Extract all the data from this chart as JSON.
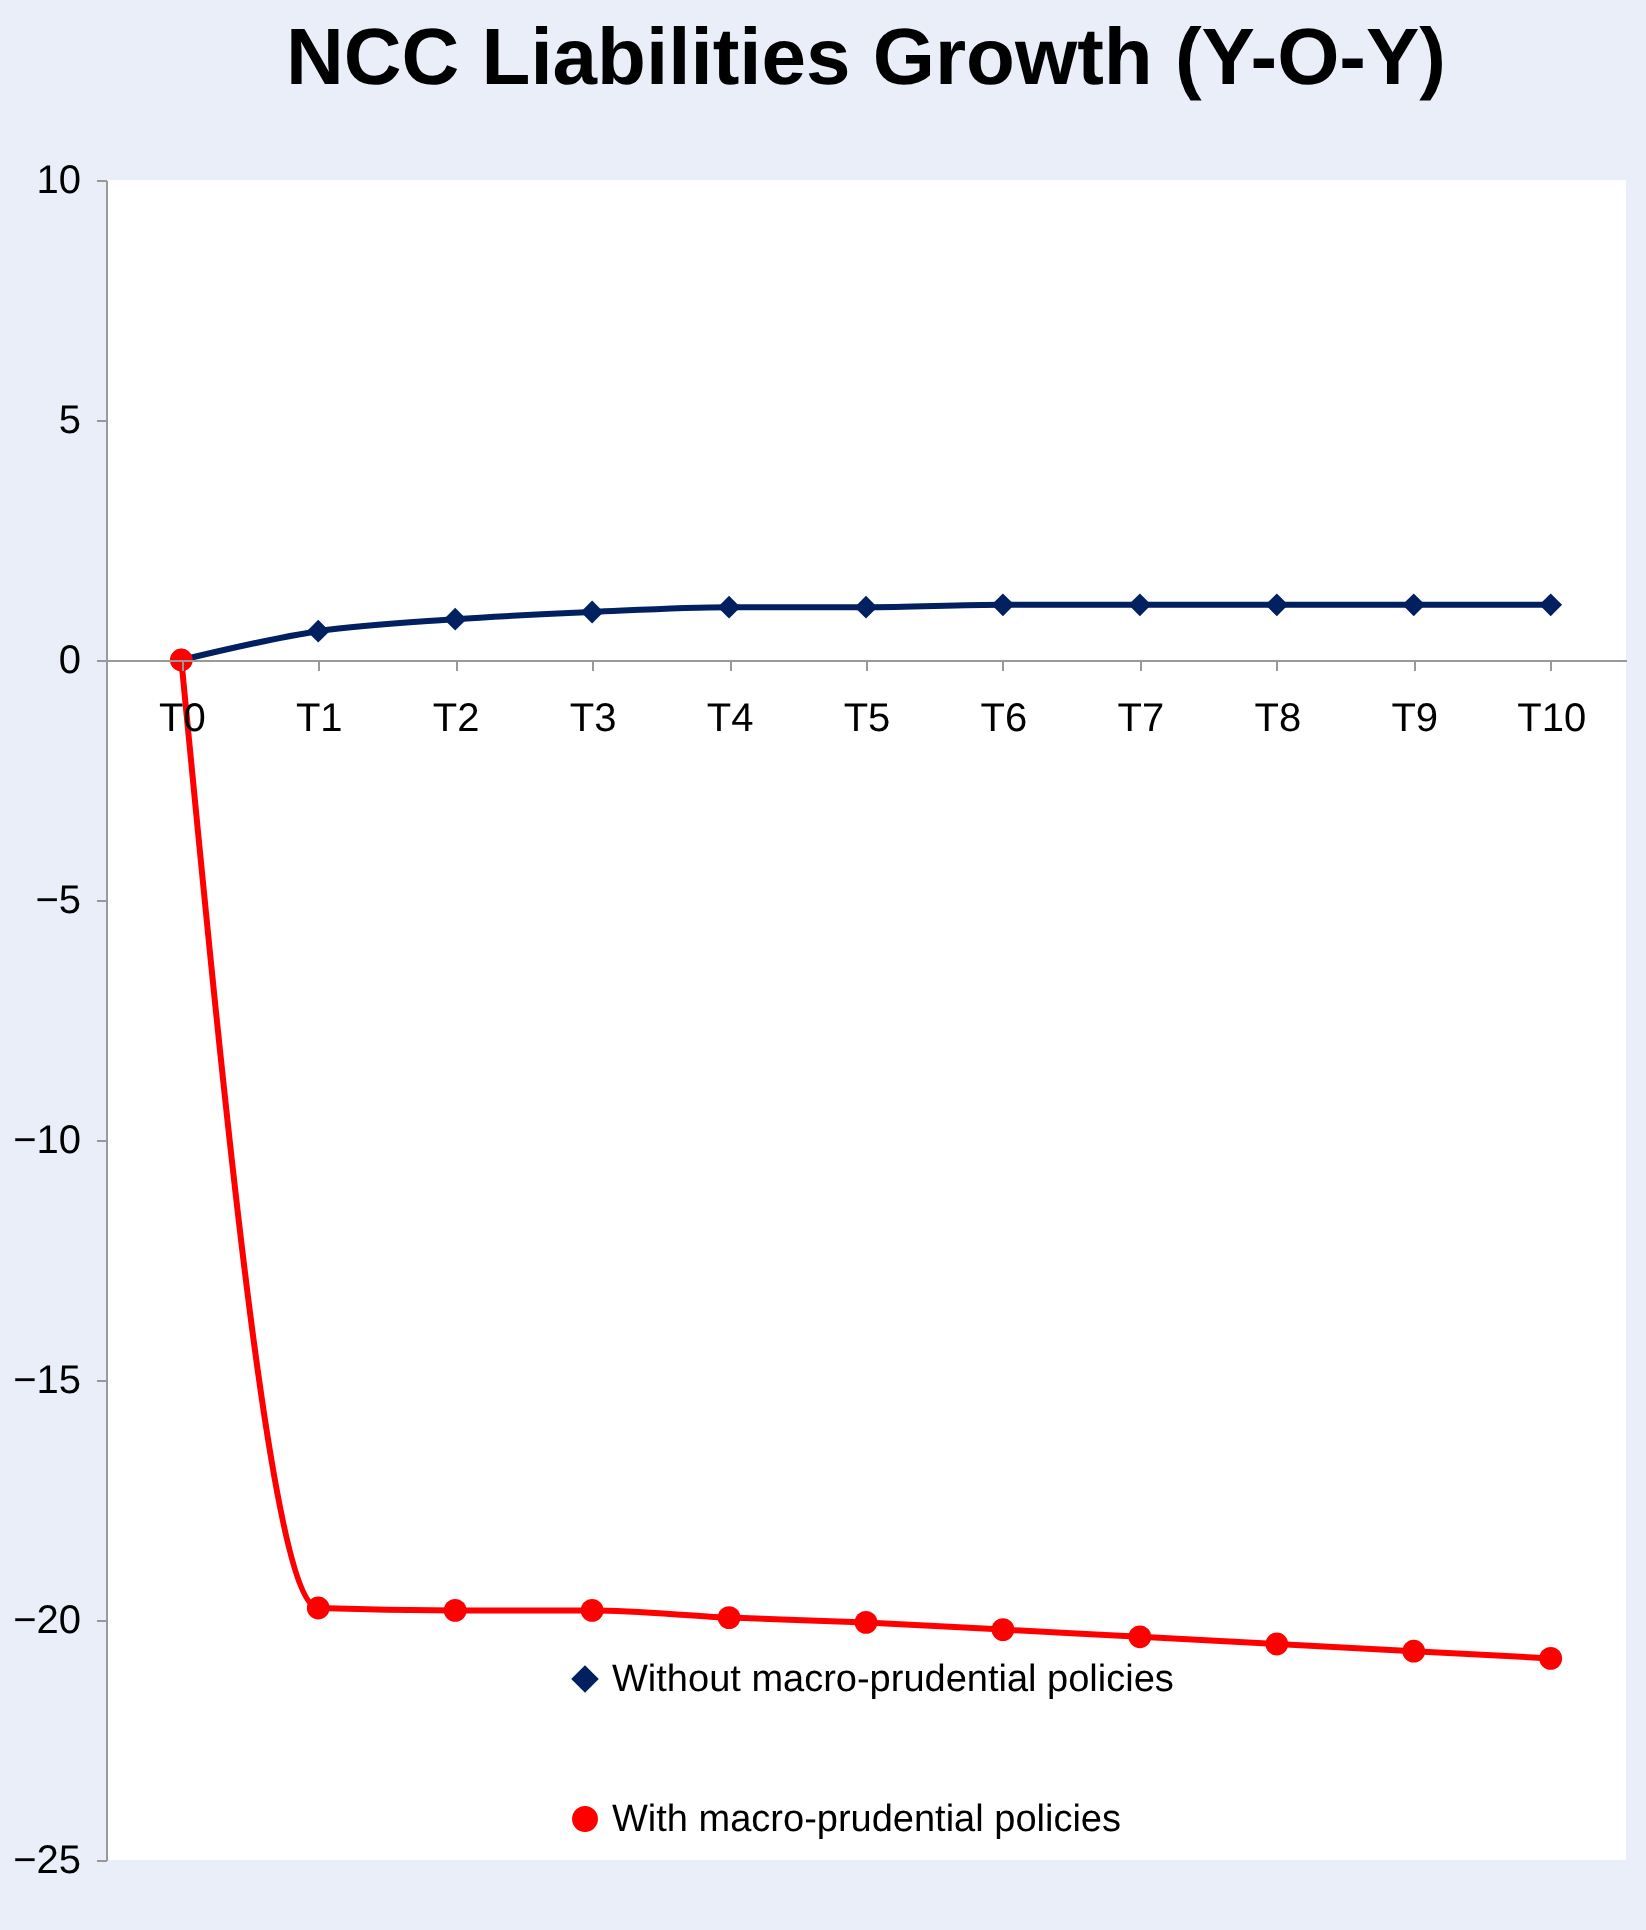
{
  "chart_data": {
    "type": "line",
    "title": "NCC Liabilities Growth (Y-O-Y)",
    "categories": [
      "T0",
      "T1",
      "T2",
      "T3",
      "T4",
      "T5",
      "T6",
      "T7",
      "T8",
      "T9",
      "T10"
    ],
    "series": [
      {
        "name": "Without macro-prudential policies",
        "color": "#002060",
        "marker": "diamond",
        "values": [
          0,
          0.6,
          0.85,
          1.0,
          1.1,
          1.1,
          1.15,
          1.15,
          1.15,
          1.15,
          1.15
        ]
      },
      {
        "name": "With macro-prudential policies",
        "color": "#ff0000",
        "marker": "circle",
        "values": [
          0,
          -19.75,
          -19.8,
          -19.8,
          -19.95,
          -20.05,
          -20.2,
          -20.35,
          -20.5,
          -20.65,
          -20.8
        ]
      }
    ],
    "ylim": [
      -25,
      10
    ],
    "yticks": [
      -25,
      -20,
      -15,
      -10,
      -5,
      0,
      5,
      10
    ],
    "legend": "bottom"
  }
}
